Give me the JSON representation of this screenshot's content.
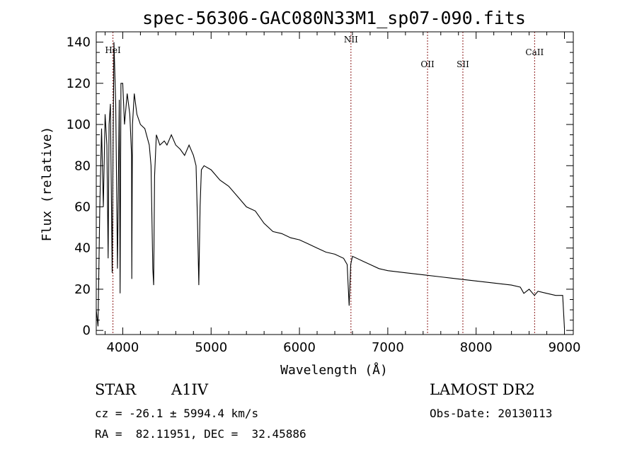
{
  "chart_data": {
    "type": "line",
    "title": "spec-56306-GAC080N33M1_sp07-090.fits",
    "xlabel": "Wavelength (Å)",
    "ylabel": "Flux (relative)",
    "xlim": [
      3700,
      9100
    ],
    "ylim": [
      -2,
      145
    ],
    "xticks": [
      4000,
      5000,
      6000,
      7000,
      8000,
      9000
    ],
    "yticks": [
      0,
      20,
      40,
      60,
      80,
      100,
      120,
      140
    ],
    "grid": false,
    "series": [
      {
        "x": [
          3700,
          3720,
          3740,
          3760,
          3780,
          3800,
          3820,
          3835,
          3845,
          3860,
          3880,
          3890,
          3900,
          3920,
          3940,
          3960,
          3970,
          3980,
          4000,
          4020,
          4050,
          4080,
          4100,
          4102,
          4110,
          4130,
          4160,
          4200,
          4250,
          4300,
          4320,
          4340,
          4350,
          4360,
          4380,
          4420,
          4470,
          4500,
          4550,
          4600,
          4650,
          4700,
          4750,
          4800,
          4830,
          4845,
          4861,
          4875,
          4890,
          4920,
          5000,
          5100,
          5200,
          5300,
          5400,
          5500,
          5600,
          5700,
          5800,
          5900,
          6000,
          6100,
          6200,
          6300,
          6400,
          6500,
          6540,
          6563,
          6580,
          6600,
          6700,
          6800,
          6900,
          7000,
          7200,
          7400,
          7600,
          7800,
          8000,
          8200,
          8400,
          8500,
          8540,
          8600,
          8660,
          8700,
          8800,
          8900,
          8980,
          9000
        ],
        "y": [
          10,
          2,
          60,
          98,
          60,
          105,
          90,
          35,
          100,
          110,
          28,
          85,
          140,
          110,
          30,
          112,
          18,
          120,
          120,
          100,
          115,
          105,
          85,
          25,
          100,
          115,
          105,
          100,
          98,
          90,
          80,
          30,
          22,
          75,
          95,
          90,
          92,
          90,
          95,
          90,
          88,
          85,
          90,
          85,
          80,
          55,
          22,
          60,
          78,
          80,
          78,
          73,
          70,
          65,
          60,
          58,
          52,
          48,
          47,
          45,
          44,
          42,
          40,
          38,
          37,
          35,
          32,
          12,
          32,
          36,
          34,
          32,
          30,
          29,
          28,
          27,
          26,
          25,
          24,
          23,
          22,
          21,
          18,
          20,
          17,
          19,
          18,
          17,
          17,
          1
        ]
      }
    ],
    "lines": [
      {
        "label": "HeI",
        "x": 3889
      },
      {
        "label": "NII",
        "x": 6583
      },
      {
        "label": "OII",
        "x": 7450
      },
      {
        "label": "SII",
        "x": 7850
      },
      {
        "label": "CaII",
        "x": 8662
      }
    ]
  },
  "info": {
    "object_type": "STAR",
    "subclass": "A1IV",
    "survey": "LAMOST DR2",
    "cz": "cz = -26.1 ± 5994.4 km/s",
    "obs_date": "Obs-Date: 20130113",
    "coords": "RA =  82.11951, DEC =  32.45886"
  },
  "colors": {
    "spectrum": "#000000",
    "line_marker": "#8b1a1a",
    "axes": "#000000"
  }
}
